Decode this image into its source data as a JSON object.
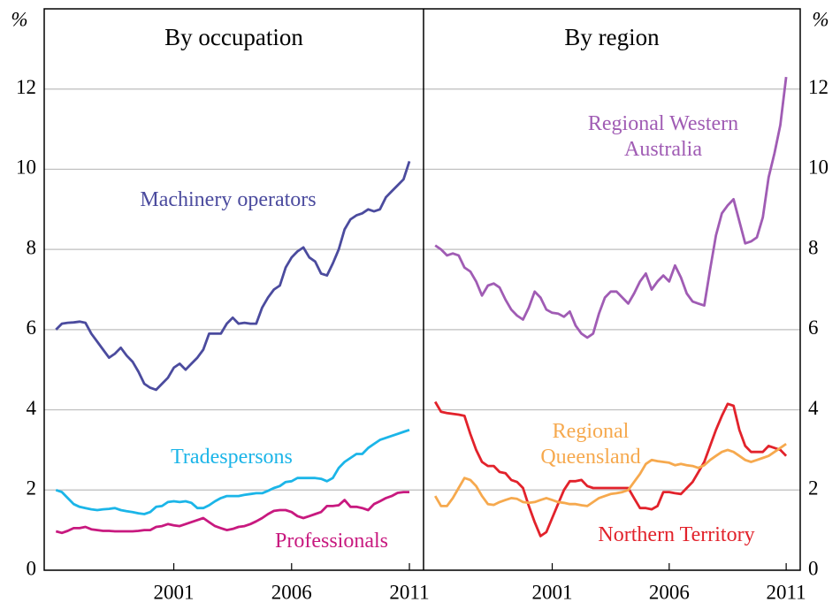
{
  "chart_data": [
    {
      "type": "line",
      "title": "By occupation",
      "ylabel": "%",
      "yaxis_side": "left",
      "grid": true,
      "xlim": [
        1995.5,
        2011.6
      ],
      "xticks": [
        2001,
        2006,
        2011
      ],
      "ylim": [
        0,
        14
      ],
      "yticks": [
        0,
        2,
        4,
        6,
        8,
        10,
        12
      ],
      "x": [
        1996,
        1996.25,
        1996.5,
        1996.75,
        1997,
        1997.25,
        1997.5,
        1997.75,
        1998,
        1998.25,
        1998.5,
        1998.75,
        1999,
        1999.25,
        1999.5,
        1999.75,
        2000,
        2000.25,
        2000.5,
        2000.75,
        2001,
        2001.25,
        2001.5,
        2001.75,
        2002,
        2002.25,
        2002.5,
        2002.75,
        2003,
        2003.25,
        2003.5,
        2003.75,
        2004,
        2004.25,
        2004.5,
        2004.75,
        2005,
        2005.25,
        2005.5,
        2005.75,
        2006,
        2006.25,
        2006.5,
        2006.75,
        2007,
        2007.25,
        2007.5,
        2007.75,
        2008,
        2008.25,
        2008.5,
        2008.75,
        2009,
        2009.25,
        2009.5,
        2009.75,
        2010,
        2010.25,
        2010.5,
        2010.75,
        2011
      ],
      "series": [
        {
          "name": "Machinery operators",
          "color": "#4b4b9e",
          "values": [
            6.0,
            6.15,
            6.17,
            6.18,
            6.2,
            6.17,
            5.9,
            5.7,
            5.5,
            5.3,
            5.4,
            5.55,
            5.35,
            5.2,
            4.95,
            4.65,
            4.55,
            4.5,
            4.65,
            4.8,
            5.05,
            5.15,
            5.0,
            5.15,
            5.3,
            5.5,
            5.9,
            5.9,
            5.9,
            6.15,
            6.3,
            6.15,
            6.17,
            6.15,
            6.15,
            6.55,
            6.8,
            7.0,
            7.1,
            7.55,
            7.8,
            7.95,
            8.05,
            7.8,
            7.7,
            7.4,
            7.35,
            7.65,
            8.0,
            8.5,
            8.75,
            8.85,
            8.9,
            9.0,
            8.95,
            9.0,
            9.3,
            9.45,
            9.6,
            9.75,
            10.2
          ]
        },
        {
          "name": "Tradespersons",
          "color": "#1bb5e8",
          "values": [
            2.0,
            1.95,
            1.8,
            1.65,
            1.58,
            1.55,
            1.52,
            1.5,
            1.52,
            1.53,
            1.55,
            1.5,
            1.47,
            1.45,
            1.42,
            1.4,
            1.45,
            1.58,
            1.6,
            1.7,
            1.72,
            1.7,
            1.72,
            1.68,
            1.55,
            1.55,
            1.62,
            1.72,
            1.8,
            1.85,
            1.85,
            1.85,
            1.88,
            1.9,
            1.92,
            1.92,
            1.98,
            2.05,
            2.1,
            2.2,
            2.22,
            2.3,
            2.3,
            2.3,
            2.3,
            2.28,
            2.22,
            2.3,
            2.55,
            2.7,
            2.8,
            2.9,
            2.9,
            3.05,
            3.15,
            3.25,
            3.3,
            3.35,
            3.4,
            3.45,
            3.5
          ]
        },
        {
          "name": "Professionals",
          "color": "#c8197f",
          "values": [
            0.97,
            0.93,
            0.98,
            1.05,
            1.05,
            1.08,
            1.02,
            1.0,
            0.98,
            0.98,
            0.97,
            0.97,
            0.97,
            0.97,
            0.98,
            1.0,
            1.0,
            1.08,
            1.1,
            1.15,
            1.12,
            1.1,
            1.15,
            1.2,
            1.25,
            1.3,
            1.2,
            1.1,
            1.05,
            1.0,
            1.03,
            1.08,
            1.1,
            1.15,
            1.22,
            1.3,
            1.4,
            1.48,
            1.5,
            1.5,
            1.45,
            1.35,
            1.3,
            1.35,
            1.4,
            1.45,
            1.6,
            1.6,
            1.62,
            1.75,
            1.58,
            1.58,
            1.55,
            1.5,
            1.65,
            1.72,
            1.8,
            1.85,
            1.93,
            1.95,
            1.95
          ]
        }
      ]
    },
    {
      "type": "line",
      "title": "By region",
      "ylabel": "%",
      "yaxis_side": "right",
      "grid": true,
      "xlim": [
        1995.5,
        2011.6
      ],
      "xticks": [
        2001,
        2006,
        2011
      ],
      "ylim": [
        0,
        14
      ],
      "yticks": [
        0,
        2,
        4,
        6,
        8,
        10,
        12
      ],
      "x": [
        1996,
        1996.25,
        1996.5,
        1996.75,
        1997,
        1997.25,
        1997.5,
        1997.75,
        1998,
        1998.25,
        1998.5,
        1998.75,
        1999,
        1999.25,
        1999.5,
        1999.75,
        2000,
        2000.25,
        2000.5,
        2000.75,
        2001,
        2001.25,
        2001.5,
        2001.75,
        2002,
        2002.25,
        2002.5,
        2002.75,
        2003,
        2003.25,
        2003.5,
        2003.75,
        2004,
        2004.25,
        2004.5,
        2004.75,
        2005,
        2005.25,
        2005.5,
        2005.75,
        2006,
        2006.25,
        2006.5,
        2006.75,
        2007,
        2007.25,
        2007.5,
        2007.75,
        2008,
        2008.25,
        2008.5,
        2008.75,
        2009,
        2009.25,
        2009.5,
        2009.75,
        2010,
        2010.25,
        2010.5,
        2010.75,
        2011
      ],
      "series": [
        {
          "name": "Regional Western Australia",
          "color": "#a05cb4",
          "values": [
            8.1,
            8.0,
            7.85,
            7.9,
            7.85,
            7.55,
            7.45,
            7.2,
            6.85,
            7.1,
            7.15,
            7.05,
            6.75,
            6.5,
            6.35,
            6.25,
            6.55,
            6.95,
            6.8,
            6.5,
            6.42,
            6.4,
            6.32,
            6.45,
            6.1,
            5.9,
            5.8,
            5.9,
            6.4,
            6.8,
            6.95,
            6.95,
            6.8,
            6.65,
            6.9,
            7.2,
            7.4,
            7.0,
            7.2,
            7.35,
            7.2,
            7.6,
            7.3,
            6.9,
            6.7,
            6.65,
            6.6,
            7.5,
            8.35,
            8.9,
            9.1,
            9.25,
            8.7,
            8.15,
            8.2,
            8.3,
            8.8,
            9.8,
            10.4,
            11.1,
            12.3
          ]
        },
        {
          "name": "Northern Territory",
          "color": "#e2222b",
          "values": [
            4.2,
            3.95,
            3.92,
            3.9,
            3.88,
            3.85,
            3.4,
            3.0,
            2.7,
            2.6,
            2.6,
            2.45,
            2.42,
            2.25,
            2.2,
            2.05,
            1.6,
            1.2,
            0.85,
            0.95,
            1.3,
            1.65,
            2.0,
            2.22,
            2.22,
            2.25,
            2.1,
            2.05,
            2.05,
            2.05,
            2.05,
            2.05,
            2.05,
            2.05,
            1.8,
            1.55,
            1.55,
            1.52,
            1.6,
            1.95,
            1.95,
            1.92,
            1.9,
            2.05,
            2.2,
            2.45,
            2.7,
            3.1,
            3.5,
            3.85,
            4.15,
            4.1,
            3.5,
            3.1,
            2.95,
            2.95,
            2.95,
            3.1,
            3.05,
            3.0,
            2.85
          ]
        },
        {
          "name": "Regional Queensland",
          "color": "#f6a94e",
          "values": [
            1.85,
            1.6,
            1.6,
            1.8,
            2.05,
            2.3,
            2.25,
            2.1,
            1.85,
            1.65,
            1.63,
            1.7,
            1.75,
            1.8,
            1.78,
            1.7,
            1.68,
            1.7,
            1.75,
            1.8,
            1.75,
            1.7,
            1.68,
            1.65,
            1.65,
            1.62,
            1.6,
            1.7,
            1.8,
            1.85,
            1.9,
            1.92,
            1.95,
            2.0,
            2.2,
            2.4,
            2.65,
            2.75,
            2.72,
            2.7,
            2.68,
            2.62,
            2.65,
            2.62,
            2.6,
            2.55,
            2.62,
            2.75,
            2.85,
            2.95,
            3.0,
            2.95,
            2.85,
            2.75,
            2.7,
            2.75,
            2.8,
            2.85,
            2.95,
            3.05,
            3.15
          ]
        }
      ]
    }
  ]
}
